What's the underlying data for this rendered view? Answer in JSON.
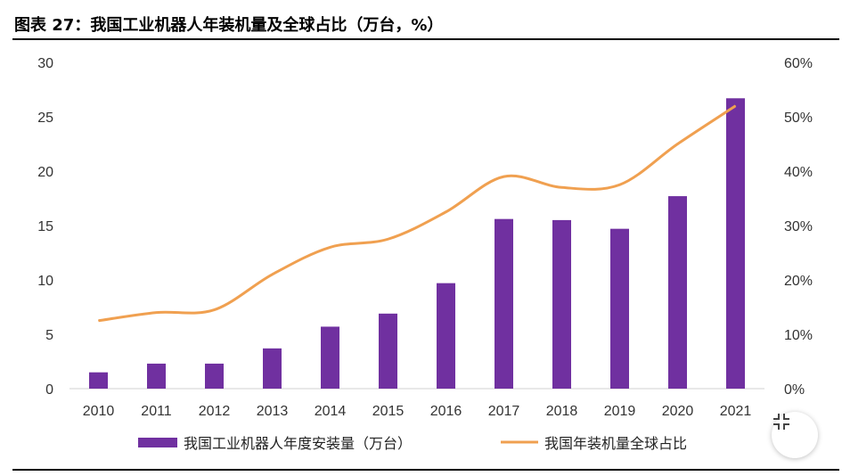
{
  "title": "图表 27：我国工业机器人年装机量及全球占比（万台，%）",
  "chart_data": {
    "type": "bar",
    "categories": [
      "2010",
      "2011",
      "2012",
      "2013",
      "2014",
      "2015",
      "2016",
      "2017",
      "2018",
      "2019",
      "2020",
      "2021"
    ],
    "series": [
      {
        "name": "我国工业机器人年度安装量（万台）",
        "type": "bar",
        "axis": "left",
        "color": "#7030a0",
        "values": [
          1.5,
          2.3,
          2.3,
          3.7,
          5.7,
          6.9,
          9.7,
          15.6,
          15.5,
          14.7,
          17.7,
          26.7
        ]
      },
      {
        "name": "我国年装机量全球占比",
        "type": "line",
        "axis": "right",
        "color": "#f0a050",
        "values": [
          12.5,
          14.0,
          14.5,
          21.0,
          26.0,
          27.5,
          32.5,
          39.0,
          37.0,
          37.5,
          45.0,
          52.0
        ]
      }
    ],
    "ylim_left": [
      0,
      30
    ],
    "yticks_left": [
      "0",
      "5",
      "10",
      "15",
      "20",
      "25",
      "30"
    ],
    "ylim_right": [
      0,
      60
    ],
    "yticks_right": [
      "0%",
      "10%",
      "20%",
      "30%",
      "40%",
      "50%",
      "60%"
    ],
    "grid": false,
    "legend_position": "bottom"
  },
  "expand_icon": "collapse-arrows-icon"
}
